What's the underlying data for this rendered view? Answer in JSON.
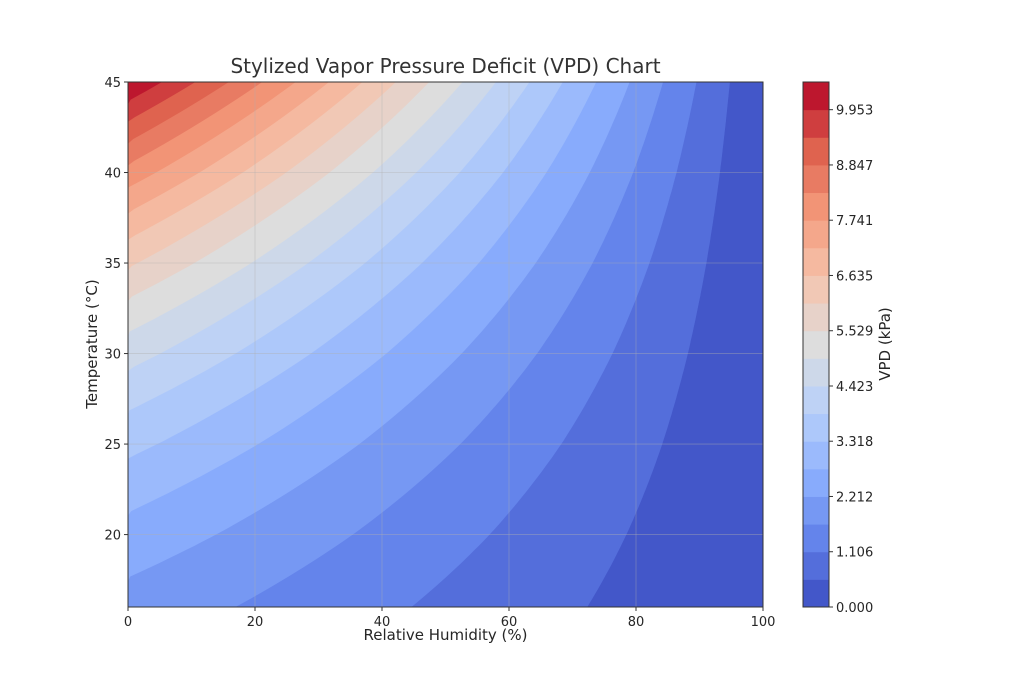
{
  "chart_data": {
    "type": "contourf",
    "title": "Stylized Vapor Pressure Deficit (VPD) Chart",
    "xlabel": "Relative Humidity (%)",
    "ylabel": "Temperature (°C)",
    "colorbar_label": "VPD (kPa)",
    "xlim": [
      0,
      100
    ],
    "ylim": [
      16,
      45
    ],
    "xticks": [
      "0",
      "20",
      "40",
      "60",
      "80",
      "100"
    ],
    "yticks": [
      "20",
      "25",
      "30",
      "35",
      "40",
      "45"
    ],
    "colorbar_ticks": [
      "0.000",
      "1.106",
      "2.212",
      "3.318",
      "4.423",
      "5.529",
      "6.635",
      "7.741",
      "8.847",
      "9.953"
    ],
    "colorbar_range": [
      0,
      10.507
    ],
    "levels_count": 19,
    "grid": true,
    "colormap": "coolwarm",
    "colormap_anchors": [
      "#3b4cc0",
      "#6282ea",
      "#8db0fe",
      "#b8d0f9",
      "#dddddd",
      "#f5c4ad",
      "#f49a7b",
      "#de604d",
      "#b40426"
    ],
    "vpd_at_rh0": {
      "temperature": [
        16,
        20,
        25,
        30,
        35,
        40,
        45
      ],
      "vpd": [
        1.995,
        2.565,
        3.475,
        4.655,
        6.169,
        8.092,
        10.507
      ]
    },
    "rh_relation": "VPD decreases linearly with RH, reaching 0 at 100%"
  }
}
